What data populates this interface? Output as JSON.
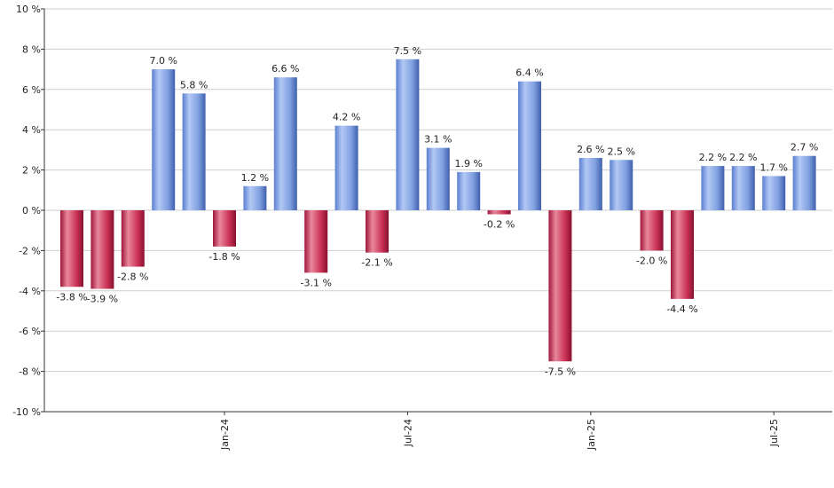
{
  "chart_data": {
    "type": "bar",
    "y_unit_suffix": " %",
    "ylim": [
      -10,
      10
    ],
    "y_ticks": [
      10,
      8,
      6,
      4,
      2,
      0,
      -2,
      -4,
      -6,
      -8,
      -10
    ],
    "y_tick_labels": [
      "10 %",
      "8 %",
      "6 %",
      "4 %",
      "2 %",
      "0 %",
      "-2 %",
      "-4 %",
      "-6 %",
      "-8 %",
      "-10 %"
    ],
    "x_tick_labels": [
      {
        "label": "Jan-24",
        "bar_index": 5
      },
      {
        "label": "Jul-24",
        "bar_index": 11
      },
      {
        "label": "Jan-25",
        "bar_index": 17
      },
      {
        "label": "Jul-25",
        "bar_index": 23
      }
    ],
    "values": [
      -3.8,
      -3.9,
      -2.8,
      7.0,
      5.8,
      -1.8,
      1.2,
      6.6,
      -3.1,
      4.2,
      -2.1,
      7.5,
      3.1,
      1.9,
      -0.2,
      6.4,
      -7.5,
      2.6,
      2.5,
      -2.0,
      -4.4,
      2.2,
      2.2,
      1.7,
      2.7
    ],
    "value_labels": [
      "-3.8 %",
      "-3.9 %",
      "-2.8 %",
      "7.0 %",
      "5.8 %",
      "-1.8 %",
      "1.2 %",
      "6.6 %",
      "-3.1 %",
      "4.2 %",
      "-2.1 %",
      "7.5 %",
      "3.1 %",
      "1.9 %",
      "-0.2 %",
      "6.4 %",
      "-7.5 %",
      "2.6 %",
      "2.5 %",
      "-2.0 %",
      "-4.4 %",
      "2.2 %",
      "2.2 %",
      "1.7 %",
      "2.7 %"
    ],
    "grid": true,
    "colors": {
      "positive": "#7a9ee0",
      "negative": "#c8284c",
      "grid": "#cfcfcf",
      "axis": "#333333"
    }
  }
}
